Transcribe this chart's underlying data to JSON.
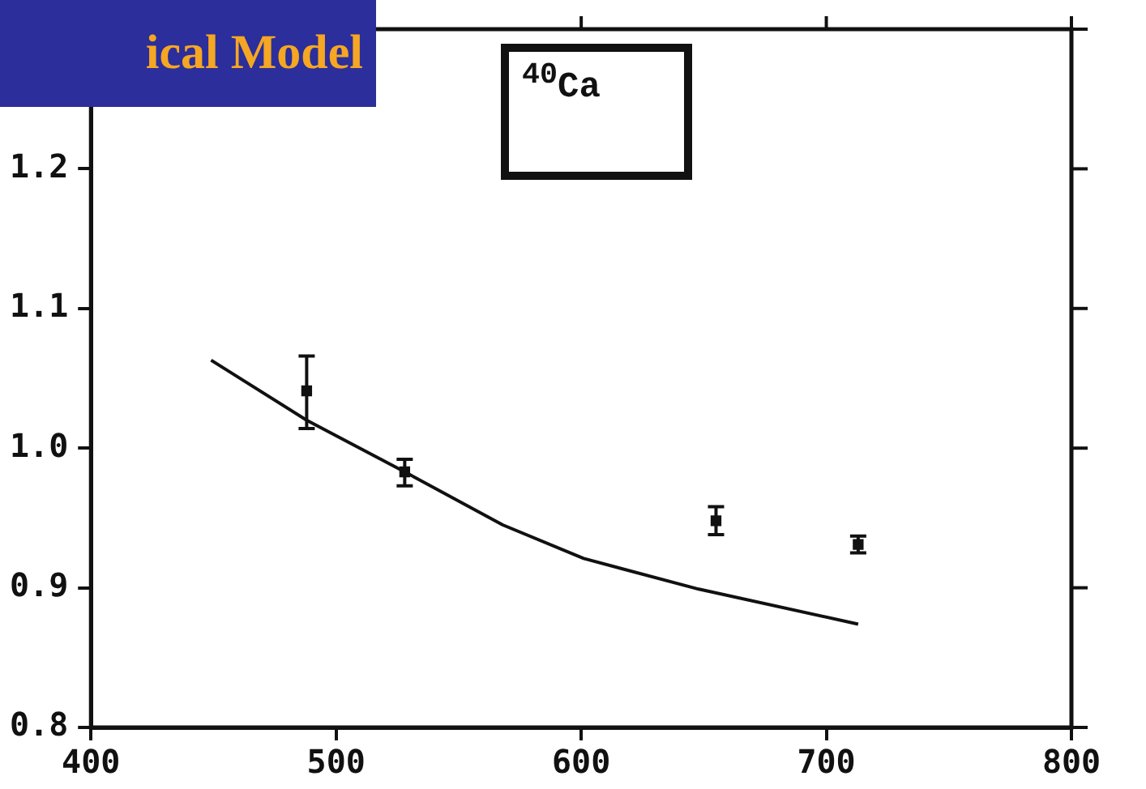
{
  "chart_data": {
    "type": "scatter",
    "title": "ical Model",
    "annotations": [
      "$^{40}$Ca"
    ],
    "xlim": [
      400,
      800
    ],
    "xticks": [
      400,
      500,
      600,
      700,
      800
    ],
    "ylim": [
      0.8,
      1.3
    ],
    "yticks": [
      {
        "value": 0.8,
        "label": "0.8"
      },
      {
        "value": 0.9,
        "label": "0.9"
      },
      {
        "value": 1.0,
        "label": "1.0"
      },
      {
        "value": 1.1,
        "label": "1.1"
      },
      {
        "value": 1.2,
        "label": "1.2"
      },
      {
        "value": 1.3,
        "label": null
      }
    ],
    "grid": false,
    "legend": false,
    "series": [
      {
        "marker": "square",
        "color": "#111111",
        "x": [
          488,
          528,
          655,
          713
        ],
        "values": [
          1.041,
          0.983,
          0.948,
          0.931
        ],
        "errors": [
          [
            1.014,
            1.066
          ],
          [
            0.973,
            0.992
          ],
          [
            0.938,
            0.958
          ],
          [
            0.925,
            0.937
          ]
        ]
      },
      {
        "type": "line",
        "color": "#111111",
        "x": [
          449,
          488,
          528,
          568,
          601,
          648,
          713
        ],
        "values": [
          1.063,
          1.02,
          0.983,
          0.945,
          0.921,
          0.899,
          0.874
        ]
      }
    ]
  }
}
